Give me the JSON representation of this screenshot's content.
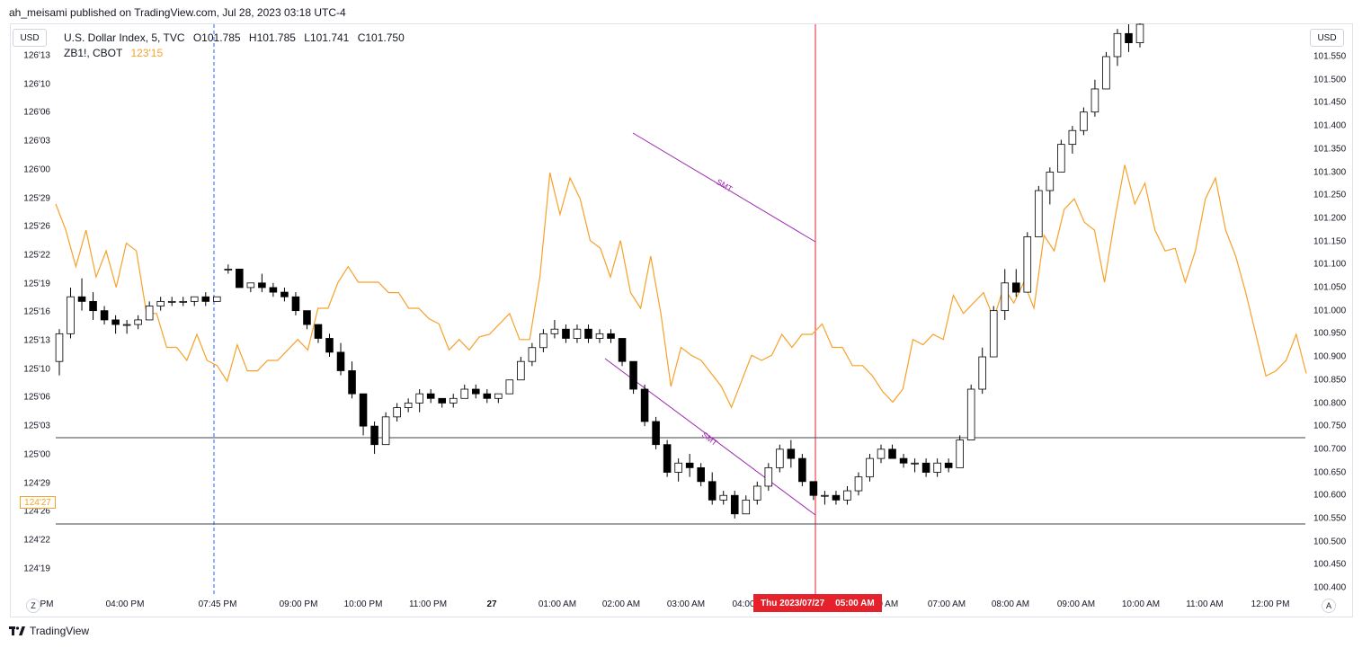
{
  "publisher": "ah_meisami published on TradingView.com, Jul 28, 2023 03:18 UTC-4",
  "currency_left": "USD",
  "currency_right": "USD",
  "legend": {
    "symbol1": "U.S. Dollar Index, 5, TVC",
    "o": "O101.785",
    "h": "H101.785",
    "l": "L101.741",
    "c": "C101.750",
    "symbol2": "ZB1!, CBOT",
    "symbol2_price": "123'15"
  },
  "left_axis": [
    "126'13",
    "126'10",
    "126'06",
    "126'03",
    "126'00",
    "125'29",
    "125'26",
    "125'22",
    "125'19",
    "125'16",
    "125'13",
    "125'10",
    "125'06",
    "125'03",
    "125'00",
    "124'29",
    "124'26",
    "124'22",
    "124'19"
  ],
  "left_price_label": "124'27",
  "right_axis": [
    "101.550",
    "101.500",
    "101.450",
    "101.400",
    "101.350",
    "101.300",
    "101.250",
    "101.200",
    "101.150",
    "101.100",
    "101.050",
    "101.000",
    "100.950",
    "100.900",
    "100.850",
    "100.800",
    "100.750",
    "100.700",
    "100.650",
    "100.600",
    "100.550",
    "100.500",
    "100.450",
    "100.400"
  ],
  "time_axis": [
    {
      "label": "00 PM"
    },
    {
      "label": "04:00 PM"
    },
    {
      "label": "07:45 PM"
    },
    {
      "label": "09:00 PM"
    },
    {
      "label": "10:00 PM"
    },
    {
      "label": "11:00 PM"
    },
    {
      "label": "27",
      "bold": true
    },
    {
      "label": "01:00 AM"
    },
    {
      "label": "02:00 AM"
    },
    {
      "label": "03:00 AM"
    },
    {
      "label": "04:00"
    },
    {
      "label": "00 AM"
    },
    {
      "label": "07:00 AM"
    },
    {
      "label": "08:00 AM"
    },
    {
      "label": "09:00 AM"
    },
    {
      "label": "10:00 AM"
    },
    {
      "label": "11:00 AM"
    },
    {
      "label": "12:00 PM"
    }
  ],
  "crosshair": {
    "date": "Thu 2023/07/27",
    "time": "05:00 AM"
  },
  "annotations": {
    "smt_upper": "SMT",
    "smt_lower": "SMT"
  },
  "axis_buttons": {
    "left": "Z",
    "right": "A"
  },
  "brand": "TradingView",
  "colors": {
    "candle_up": "#ffffff",
    "candle_down": "#000000",
    "overlay_line": "#f7a129",
    "smt_line": "#9c27b0",
    "crosshair": "#e5212b",
    "session_line": "#2962ff"
  },
  "chart_data": [
    {
      "type": "candlestick",
      "series": [
        {
          "name": "U.S. Dollar Index, 5, TVC",
          "scale": "right",
          "ylim": [
            100.37,
            101.62
          ]
        }
      ],
      "values": [
        [
          100.89,
          100.96,
          100.86,
          100.95
        ],
        [
          100.95,
          101.05,
          100.94,
          101.03
        ],
        [
          101.03,
          101.07,
          101.0,
          101.02
        ],
        [
          101.02,
          101.04,
          100.98,
          101.0
        ],
        [
          101.0,
          101.01,
          100.97,
          100.98
        ],
        [
          100.98,
          100.99,
          100.95,
          100.97
        ],
        [
          100.97,
          100.98,
          100.95,
          100.97
        ],
        [
          100.97,
          100.99,
          100.96,
          100.98
        ],
        [
          100.98,
          101.02,
          100.98,
          101.01
        ],
        [
          101.01,
          101.03,
          101.0,
          101.02
        ],
        [
          101.02,
          101.03,
          101.01,
          101.02
        ],
        [
          101.02,
          101.03,
          101.01,
          101.02
        ],
        [
          101.02,
          101.03,
          101.01,
          101.03
        ],
        [
          101.03,
          101.04,
          101.01,
          101.02
        ],
        [
          101.02,
          101.03,
          101.02,
          101.03
        ],
        [
          101.09,
          101.1,
          101.08,
          101.09
        ],
        [
          101.09,
          101.09,
          101.05,
          101.05
        ],
        [
          101.05,
          101.06,
          101.04,
          101.06
        ],
        [
          101.06,
          101.08,
          101.04,
          101.05
        ],
        [
          101.05,
          101.06,
          101.03,
          101.04
        ],
        [
          101.04,
          101.05,
          101.02,
          101.03
        ],
        [
          101.03,
          101.04,
          100.99,
          101.0
        ],
        [
          101.0,
          101.0,
          100.96,
          100.97
        ],
        [
          100.97,
          100.97,
          100.93,
          100.94
        ],
        [
          100.94,
          100.95,
          100.9,
          100.91
        ],
        [
          100.91,
          100.93,
          100.86,
          100.87
        ],
        [
          100.87,
          100.89,
          100.81,
          100.82
        ],
        [
          100.82,
          100.82,
          100.73,
          100.75
        ],
        [
          100.75,
          100.76,
          100.69,
          100.71
        ],
        [
          100.71,
          100.78,
          100.71,
          100.77
        ],
        [
          100.77,
          100.8,
          100.76,
          100.79
        ],
        [
          100.79,
          100.81,
          100.78,
          100.8
        ],
        [
          100.8,
          100.83,
          100.78,
          100.82
        ],
        [
          100.82,
          100.83,
          100.8,
          100.81
        ],
        [
          100.81,
          100.81,
          100.79,
          100.8
        ],
        [
          100.8,
          100.82,
          100.79,
          100.81
        ],
        [
          100.81,
          100.84,
          100.81,
          100.83
        ],
        [
          100.83,
          100.84,
          100.81,
          100.82
        ],
        [
          100.82,
          100.83,
          100.8,
          100.81
        ],
        [
          100.81,
          100.82,
          100.8,
          100.82
        ],
        [
          100.82,
          100.85,
          100.82,
          100.85
        ],
        [
          100.85,
          100.9,
          100.85,
          100.89
        ],
        [
          100.89,
          100.93,
          100.88,
          100.92
        ],
        [
          100.92,
          100.96,
          100.91,
          100.95
        ],
        [
          100.95,
          100.98,
          100.94,
          100.96
        ],
        [
          100.96,
          100.97,
          100.93,
          100.94
        ],
        [
          100.94,
          100.97,
          100.93,
          100.96
        ],
        [
          100.96,
          100.97,
          100.93,
          100.94
        ],
        [
          100.94,
          100.96,
          100.93,
          100.95
        ],
        [
          100.95,
          100.96,
          100.93,
          100.94
        ],
        [
          100.94,
          100.94,
          100.88,
          100.89
        ],
        [
          100.89,
          100.89,
          100.82,
          100.83
        ],
        [
          100.83,
          100.84,
          100.75,
          100.76
        ],
        [
          100.76,
          100.77,
          100.7,
          100.71
        ],
        [
          100.71,
          100.72,
          100.64,
          100.65
        ],
        [
          100.65,
          100.68,
          100.63,
          100.67
        ],
        [
          100.67,
          100.69,
          100.64,
          100.66
        ],
        [
          100.66,
          100.67,
          100.62,
          100.63
        ],
        [
          100.63,
          100.65,
          100.58,
          100.59
        ],
        [
          100.59,
          100.61,
          100.58,
          100.6
        ],
        [
          100.6,
          100.61,
          100.55,
          100.56
        ],
        [
          100.56,
          100.6,
          100.56,
          100.59
        ],
        [
          100.59,
          100.63,
          100.58,
          100.62
        ],
        [
          100.62,
          100.67,
          100.61,
          100.66
        ],
        [
          100.66,
          100.71,
          100.65,
          100.7
        ],
        [
          100.7,
          100.72,
          100.66,
          100.68
        ],
        [
          100.68,
          100.69,
          100.62,
          100.63
        ],
        [
          100.63,
          100.63,
          100.59,
          100.6
        ],
        [
          100.6,
          100.61,
          100.58,
          100.6
        ],
        [
          100.6,
          100.61,
          100.58,
          100.59
        ],
        [
          100.59,
          100.62,
          100.58,
          100.61
        ],
        [
          100.61,
          100.65,
          100.6,
          100.64
        ],
        [
          100.64,
          100.69,
          100.63,
          100.68
        ],
        [
          100.68,
          100.71,
          100.67,
          100.7
        ],
        [
          100.7,
          100.71,
          100.68,
          100.68
        ],
        [
          100.68,
          100.69,
          100.66,
          100.67
        ],
        [
          100.67,
          100.68,
          100.65,
          100.67
        ],
        [
          100.67,
          100.68,
          100.64,
          100.65
        ],
        [
          100.65,
          100.68,
          100.64,
          100.67
        ],
        [
          100.67,
          100.68,
          100.65,
          100.66
        ],
        [
          100.66,
          100.73,
          100.66,
          100.72
        ],
        [
          100.72,
          100.84,
          100.72,
          100.83
        ],
        [
          100.83,
          100.92,
          100.82,
          100.9
        ],
        [
          100.9,
          101.01,
          100.9,
          101.0
        ],
        [
          101.0,
          101.09,
          100.98,
          101.06
        ],
        [
          101.06,
          101.09,
          101.03,
          101.04
        ],
        [
          101.04,
          101.17,
          101.04,
          101.16
        ],
        [
          101.16,
          101.27,
          101.16,
          101.26
        ],
        [
          101.26,
          101.31,
          101.23,
          101.3
        ],
        [
          101.3,
          101.37,
          101.3,
          101.36
        ],
        [
          101.36,
          101.4,
          101.34,
          101.39
        ],
        [
          101.39,
          101.44,
          101.38,
          101.43
        ],
        [
          101.43,
          101.5,
          101.42,
          101.48
        ],
        [
          101.48,
          101.56,
          101.48,
          101.55
        ],
        [
          101.55,
          101.61,
          101.53,
          101.6
        ],
        [
          101.6,
          101.62,
          101.56,
          101.58
        ],
        [
          101.58,
          101.63,
          101.57,
          101.62
        ]
      ]
    },
    {
      "type": "line",
      "series": [
        {
          "name": "ZB1!, CBOT",
          "scale": "left"
        }
      ],
      "values": [
        170,
        160,
        146,
        160,
        142,
        152,
        138,
        155,
        152,
        128,
        128,
        115,
        115,
        110,
        120,
        110,
        108,
        102,
        116,
        106,
        106,
        110,
        110,
        114,
        118,
        114,
        130,
        130,
        140,
        146,
        140,
        140,
        140,
        136,
        136,
        130,
        130,
        126,
        124,
        114,
        118,
        114,
        119,
        120,
        124,
        128,
        118,
        118,
        142,
        182,
        166,
        180,
        172,
        156,
        153,
        142,
        156,
        136,
        130,
        150,
        128,
        100,
        115,
        112,
        110,
        105,
        100,
        92,
        102,
        112,
        110,
        112,
        120,
        115,
        120,
        120,
        124,
        115,
        115,
        108,
        108,
        104,
        98,
        94,
        99,
        118,
        116,
        120,
        118,
        135,
        128,
        132,
        136,
        126,
        138,
        132,
        140,
        130,
        158,
        152,
        168,
        172,
        163,
        160,
        140,
        164,
        185,
        170,
        178,
        160,
        152,
        153,
        140,
        152,
        172,
        180,
        160,
        150,
        136,
        120,
        104,
        106,
        110,
        120,
        105
      ]
    }
  ]
}
